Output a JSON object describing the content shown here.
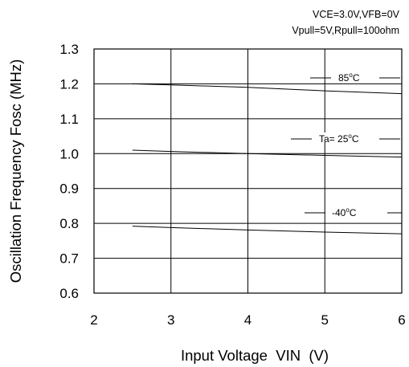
{
  "chart_data": {
    "type": "line",
    "conditions": [
      "VCE=3.0V,VFB=0V",
      "Vpull=5V,Rpull=100ohm"
    ],
    "xlabel": "Input Voltage  VIN  (V)",
    "ylabel": "Oscillation Frequency Fosc (MHz)",
    "xlim": [
      2,
      6
    ],
    "ylim": [
      0.6,
      1.3
    ],
    "x_ticks": [
      "2",
      "3",
      "4",
      "5",
      "6"
    ],
    "y_ticks": [
      "0.6",
      "0.7",
      "0.8",
      "0.9",
      "1.0",
      "1.1",
      "1.2",
      "1.3"
    ],
    "grid": true,
    "series": [
      {
        "name": "85°C",
        "label_prefix": "85",
        "label_suffix": "C",
        "x": [
          2.5,
          3,
          4,
          5,
          6
        ],
        "y": [
          1.2,
          1.197,
          1.19,
          1.18,
          1.172
        ]
      },
      {
        "name": "Ta= 25°C",
        "label_prefix": "Ta= 25",
        "label_suffix": "C",
        "x": [
          2.5,
          3,
          4,
          5,
          6
        ],
        "y": [
          1.01,
          1.006,
          1.0,
          0.995,
          0.99
        ]
      },
      {
        "name": "-40°C",
        "label_prefix": "-40",
        "label_suffix": "C",
        "x": [
          2.5,
          3,
          4,
          5,
          6
        ],
        "y": [
          0.792,
          0.788,
          0.781,
          0.775,
          0.77
        ]
      }
    ]
  }
}
